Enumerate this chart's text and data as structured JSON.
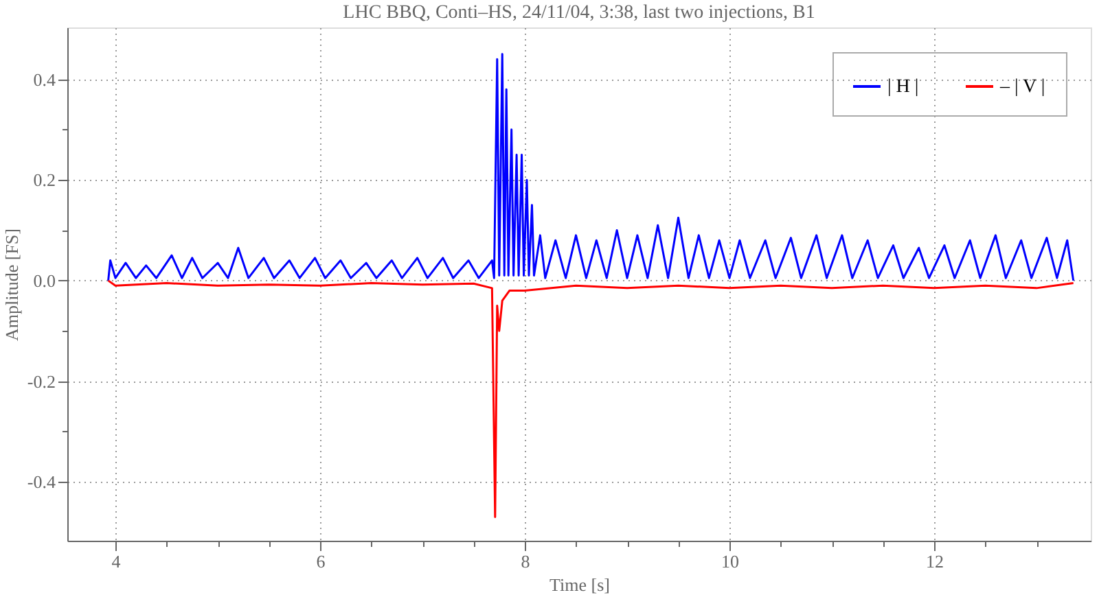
{
  "chart_data": {
    "type": "line",
    "title": "LHC BBQ,  Conti–HS,  24/11/04,  3:38,  last two injections,  B1",
    "xlabel": "Time  [s]",
    "ylabel": "Amplitude  [FS]",
    "xlim": [
      3.53,
      13.53
    ],
    "ylim": [
      -0.517,
      0.503
    ],
    "xticks": [
      4,
      {
        "value": 4.5,
        "label": null
      },
      {
        "value": 5,
        "label": null
      },
      {
        "value": 5.5,
        "label": null
      },
      6,
      {
        "value": 6.5,
        "label": null
      },
      {
        "value": 7,
        "label": null
      },
      {
        "value": 7.5,
        "label": null
      },
      8,
      {
        "value": 8.5,
        "label": null
      },
      {
        "value": 9,
        "label": null
      },
      {
        "value": 9.5,
        "label": null
      },
      10,
      {
        "value": 10.5,
        "label": null
      },
      {
        "value": 11,
        "label": null
      },
      {
        "value": 11.5,
        "label": null
      },
      12,
      {
        "value": 12.5,
        "label": null
      },
      {
        "value": 13,
        "label": null
      }
    ],
    "yticks": [
      -0.4,
      {
        "value": -0.3,
        "label": null
      },
      -0.2,
      {
        "value": -0.1,
        "label": null
      },
      {
        "value": 0,
        "label": "0.0"
      },
      {
        "value": 0.1,
        "label": null
      },
      0.2,
      {
        "value": 0.3,
        "label": null
      },
      0.4
    ],
    "grid": true,
    "legend": "top right",
    "marker": "none",
    "line_style": "solid",
    "series": [
      {
        "name": "| H |",
        "color": "#0000ff",
        "x": [
          3.93,
          3.95,
          4.0,
          4.1,
          4.2,
          4.3,
          4.4,
          4.55,
          4.65,
          4.75,
          4.85,
          5.0,
          5.1,
          5.2,
          5.3,
          5.45,
          5.55,
          5.7,
          5.8,
          5.95,
          6.05,
          6.2,
          6.3,
          6.45,
          6.55,
          6.7,
          6.8,
          6.95,
          7.05,
          7.2,
          7.3,
          7.45,
          7.55,
          7.68,
          7.7,
          7.73,
          7.75,
          7.78,
          7.8,
          7.82,
          7.84,
          7.87,
          7.89,
          7.92,
          7.94,
          7.97,
          7.99,
          8.02,
          8.04,
          8.07,
          8.09,
          8.15,
          8.2,
          8.3,
          8.4,
          8.5,
          8.6,
          8.7,
          8.8,
          8.9,
          9.0,
          9.1,
          9.2,
          9.3,
          9.4,
          9.5,
          9.6,
          9.7,
          9.8,
          9.9,
          10.0,
          10.1,
          10.2,
          10.35,
          10.45,
          10.6,
          10.7,
          10.85,
          10.95,
          11.1,
          11.2,
          11.35,
          11.45,
          11.6,
          11.7,
          11.85,
          11.95,
          12.1,
          12.2,
          12.35,
          12.45,
          12.6,
          12.7,
          12.85,
          12.95,
          13.1,
          13.2,
          13.3,
          13.36
        ],
        "values": [
          0.0,
          0.04,
          0.005,
          0.035,
          0.005,
          0.03,
          0.005,
          0.05,
          0.005,
          0.045,
          0.005,
          0.035,
          0.005,
          0.065,
          0.005,
          0.045,
          0.005,
          0.04,
          0.005,
          0.045,
          0.005,
          0.04,
          0.005,
          0.035,
          0.005,
          0.04,
          0.005,
          0.045,
          0.005,
          0.045,
          0.005,
          0.04,
          0.005,
          0.04,
          0.005,
          0.44,
          0.01,
          0.45,
          0.01,
          0.38,
          0.01,
          0.3,
          0.01,
          0.25,
          0.01,
          0.25,
          0.01,
          0.2,
          0.01,
          0.15,
          0.01,
          0.09,
          0.005,
          0.08,
          0.005,
          0.09,
          0.005,
          0.08,
          0.005,
          0.1,
          0.005,
          0.09,
          0.005,
          0.11,
          0.005,
          0.125,
          0.005,
          0.09,
          0.005,
          0.08,
          0.005,
          0.08,
          0.005,
          0.08,
          0.005,
          0.085,
          0.005,
          0.09,
          0.005,
          0.09,
          0.005,
          0.08,
          0.005,
          0.07,
          0.005,
          0.065,
          0.005,
          0.07,
          0.005,
          0.08,
          0.005,
          0.09,
          0.005,
          0.08,
          0.005,
          0.085,
          0.005,
          0.08,
          0.0
        ]
      },
      {
        "name": "– | V |",
        "color": "#ff0000",
        "x": [
          3.93,
          4.0,
          4.5,
          5.0,
          5.5,
          6.0,
          6.5,
          7.0,
          7.5,
          7.68,
          7.71,
          7.73,
          7.75,
          7.78,
          7.85,
          8.0,
          8.5,
          9.0,
          9.5,
          10.0,
          10.5,
          11.0,
          11.5,
          12.0,
          12.5,
          13.0,
          13.36
        ],
        "values": [
          0.0,
          -0.01,
          -0.005,
          -0.01,
          -0.008,
          -0.01,
          -0.005,
          -0.008,
          -0.006,
          -0.015,
          -0.47,
          -0.05,
          -0.1,
          -0.04,
          -0.02,
          -0.02,
          -0.01,
          -0.015,
          -0.01,
          -0.015,
          -0.01,
          -0.015,
          -0.01,
          -0.015,
          -0.01,
          -0.015,
          -0.005
        ]
      }
    ]
  }
}
